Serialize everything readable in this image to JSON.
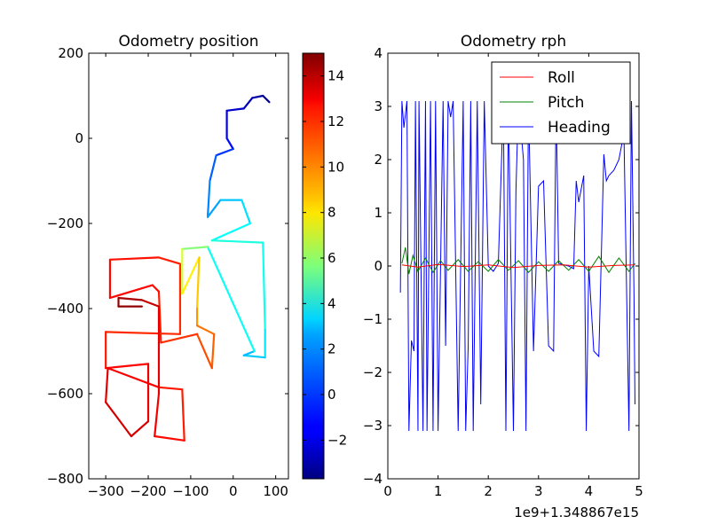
{
  "chart_data": [
    {
      "type": "scatter",
      "title": "Odometry position",
      "xlim": [
        -340,
        130
      ],
      "ylim": [
        -800,
        200
      ],
      "xticks": [
        "−300",
        "−200",
        "−100",
        "0",
        "100"
      ],
      "xtick_values": [
        -300,
        -200,
        -100,
        0,
        100
      ],
      "yticks": [
        "200",
        "0",
        "−200",
        "−400",
        "−600",
        "−800"
      ],
      "ytick_values": [
        200,
        0,
        -200,
        -400,
        -600,
        -800
      ],
      "colorbar": {
        "colormap": "jet",
        "range": [
          -3.7,
          15.0
        ],
        "ticks": [
          "14",
          "12",
          "10",
          "8",
          "6",
          "4",
          "2",
          "0",
          "−2"
        ],
        "tick_values": [
          14,
          12,
          10,
          8,
          6,
          4,
          2,
          0,
          -2
        ]
      },
      "trajectory": [
        {
          "x": 85,
          "y": 85,
          "c": -3.6
        },
        {
          "x": 70,
          "y": 100,
          "c": -3.3
        },
        {
          "x": 45,
          "y": 95,
          "c": -2.9
        },
        {
          "x": 25,
          "y": 70,
          "c": -2.5
        },
        {
          "x": -15,
          "y": 65,
          "c": -2.1
        },
        {
          "x": -15,
          "y": 0,
          "c": -1.5
        },
        {
          "x": 0,
          "y": -25,
          "c": -0.8
        },
        {
          "x": -40,
          "y": -40,
          "c": 0.0
        },
        {
          "x": -55,
          "y": -100,
          "c": 0.8
        },
        {
          "x": -60,
          "y": -185,
          "c": 1.3
        },
        {
          "x": -30,
          "y": -145,
          "c": 2.0
        },
        {
          "x": 20,
          "y": -145,
          "c": 2.5
        },
        {
          "x": 40,
          "y": -200,
          "c": 3.0
        },
        {
          "x": -50,
          "y": -240,
          "c": 3.8
        },
        {
          "x": 70,
          "y": -245,
          "c": 4.0
        },
        {
          "x": 75,
          "y": -450,
          "c": 3.2
        },
        {
          "x": 75,
          "y": -515,
          "c": 2.5
        },
        {
          "x": 25,
          "y": -510,
          "c": 2.2
        },
        {
          "x": 50,
          "y": -500,
          "c": 2.0
        },
        {
          "x": -60,
          "y": -255,
          "c": 5.0
        },
        {
          "x": -120,
          "y": -260,
          "c": 6.5
        },
        {
          "x": -120,
          "y": -365,
          "c": 8.0
        },
        {
          "x": -80,
          "y": -280,
          "c": 8.5
        },
        {
          "x": -85,
          "y": -400,
          "c": 9.5
        },
        {
          "x": -85,
          "y": -440,
          "c": 10.3
        },
        {
          "x": -45,
          "y": -460,
          "c": 10.8
        },
        {
          "x": -50,
          "y": -540,
          "c": 11.0
        },
        {
          "x": -85,
          "y": -460,
          "c": 11.5
        },
        {
          "x": -170,
          "y": -480,
          "c": 12.0
        },
        {
          "x": -175,
          "y": -360,
          "c": 12.3
        },
        {
          "x": -190,
          "y": -345,
          "c": 12.5
        },
        {
          "x": -290,
          "y": -375,
          "c": 12.6
        },
        {
          "x": -290,
          "y": -285,
          "c": 12.5
        },
        {
          "x": -175,
          "y": -280,
          "c": 12.2
        },
        {
          "x": -125,
          "y": -295,
          "c": 12.0
        },
        {
          "x": -125,
          "y": -460,
          "c": 11.8
        },
        {
          "x": -300,
          "y": -455,
          "c": 12.0
        },
        {
          "x": -300,
          "y": -540,
          "c": 12.4
        },
        {
          "x": -200,
          "y": -530,
          "c": 12.8
        },
        {
          "x": -200,
          "y": -665,
          "c": 13.2
        },
        {
          "x": -240,
          "y": -700,
          "c": 13.6
        },
        {
          "x": -300,
          "y": -620,
          "c": 13.3
        },
        {
          "x": -295,
          "y": -540,
          "c": 13.0
        },
        {
          "x": -175,
          "y": -585,
          "c": 12.5
        },
        {
          "x": -120,
          "y": -590,
          "c": 12.0
        },
        {
          "x": -115,
          "y": -710,
          "c": 12.3
        },
        {
          "x": -185,
          "y": -700,
          "c": 12.7
        },
        {
          "x": -175,
          "y": -600,
          "c": 13.0
        },
        {
          "x": -175,
          "y": -395,
          "c": 13.4
        },
        {
          "x": -215,
          "y": -380,
          "c": 14.0
        },
        {
          "x": -270,
          "y": -375,
          "c": 14.4
        },
        {
          "x": -270,
          "y": -395,
          "c": 14.6
        },
        {
          "x": -215,
          "y": -395,
          "c": 14.8
        }
      ]
    },
    {
      "type": "line",
      "title": "Odometry rph",
      "xlim": [
        0,
        5
      ],
      "ylim": [
        -4,
        4
      ],
      "xticks": [
        "0",
        "1",
        "2",
        "3",
        "4",
        "5"
      ],
      "xtick_values": [
        0,
        1,
        2,
        3,
        4,
        5
      ],
      "yticks": [
        "4",
        "3",
        "2",
        "1",
        "0",
        "−1",
        "−2",
        "−3",
        "−4"
      ],
      "ytick_values": [
        4,
        3,
        2,
        1,
        0,
        -1,
        -2,
        -3,
        -4
      ],
      "x_offset_label": "1e9+1.348867e15",
      "legend_position": "top-right",
      "series": [
        {
          "name": "Roll",
          "color": "#ff0000",
          "x": [
            0.28,
            0.6,
            1.0,
            1.5,
            2.0,
            2.5,
            3.0,
            3.5,
            4.0,
            4.5,
            4.92
          ],
          "values": [
            0.02,
            -0.02,
            0.03,
            -0.01,
            0.02,
            -0.03,
            0.01,
            0.02,
            -0.02,
            0.01,
            0.02
          ]
        },
        {
          "name": "Pitch",
          "color": "#008000",
          "x": [
            0.28,
            0.35,
            0.42,
            0.5,
            0.6,
            0.75,
            0.9,
            1.05,
            1.2,
            1.4,
            1.6,
            1.8,
            2.0,
            2.2,
            2.4,
            2.6,
            2.8,
            3.0,
            3.2,
            3.4,
            3.6,
            3.8,
            4.0,
            4.2,
            4.4,
            4.6,
            4.8,
            4.92
          ],
          "values": [
            0.05,
            0.35,
            -0.15,
            0.2,
            -0.1,
            0.15,
            -0.12,
            0.1,
            -0.08,
            0.12,
            -0.1,
            0.08,
            -0.1,
            0.12,
            -0.08,
            0.1,
            -0.12,
            0.08,
            -0.1,
            0.1,
            -0.08,
            0.12,
            -0.1,
            0.18,
            -0.12,
            0.15,
            -0.1,
            0.05
          ]
        },
        {
          "name": "Heading",
          "color": "#0000ff",
          "x": [
            0.25,
            0.28,
            0.32,
            0.38,
            0.42,
            0.47,
            0.52,
            0.55,
            0.6,
            0.62,
            0.7,
            0.75,
            0.78,
            0.85,
            0.9,
            0.95,
            1.0,
            1.1,
            1.15,
            1.2,
            1.25,
            1.3,
            1.4,
            1.5,
            1.55,
            1.6,
            1.65,
            1.7,
            1.78,
            1.85,
            1.92,
            2.0,
            2.1,
            2.2,
            2.3,
            2.35,
            2.4,
            2.5,
            2.55,
            2.6,
            2.7,
            2.75,
            2.8,
            2.9,
            3.0,
            3.1,
            3.2,
            3.3,
            3.35,
            3.4,
            3.5,
            3.6,
            3.7,
            3.75,
            3.8,
            3.9,
            3.95,
            4.0,
            4.1,
            4.2,
            4.3,
            4.35,
            4.4,
            4.5,
            4.6,
            4.7,
            4.8,
            4.85,
            4.9,
            4.92
          ],
          "values": [
            -0.5,
            3.1,
            2.6,
            3.1,
            -3.1,
            -1.4,
            -1.6,
            3.1,
            -3.1,
            3.1,
            -3.1,
            3.1,
            -3.1,
            3.1,
            -3.1,
            3.1,
            -3.1,
            3.1,
            -1.5,
            3.1,
            2.8,
            3.1,
            -3.1,
            3.1,
            -3.1,
            -1.5,
            3.1,
            -3.1,
            3.1,
            -2.6,
            3.1,
            0.0,
            -0.1,
            0.05,
            3.1,
            -3.1,
            3.1,
            -3.1,
            1.4,
            3.1,
            2.0,
            -3.1,
            3.1,
            -1.6,
            1.5,
            1.6,
            -1.5,
            -1.6,
            3.1,
            0.05,
            0.02,
            0.0,
            -0.05,
            1.6,
            1.2,
            1.7,
            -3.1,
            0.0,
            -1.6,
            -1.7,
            2.1,
            1.6,
            1.7,
            1.8,
            2.0,
            2.5,
            -3.1,
            3.1,
            -0.5,
            -2.6
          ]
        }
      ]
    }
  ]
}
